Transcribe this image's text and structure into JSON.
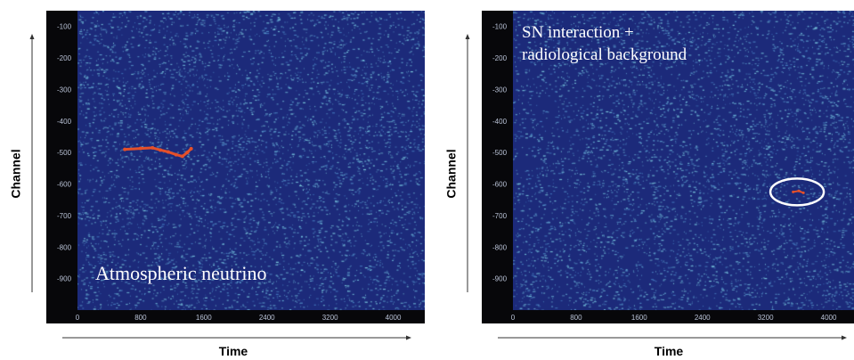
{
  "colors": {
    "background_field": "#1c2a7a",
    "noise_low": "#3d6fb8",
    "noise_high": "#7fd0e0",
    "event": "#e4502a",
    "marker": "#ffffff",
    "frame": "#07070a"
  },
  "chart_data": [
    {
      "type": "heatmap",
      "xlabel": "Time",
      "ylabel": "Channel",
      "x_ticks": [
        "0",
        "800",
        "1600",
        "2400",
        "3200",
        "4000"
      ],
      "y_ticks": [
        "-100",
        "-200",
        "-300",
        "-400",
        "-500",
        "-600",
        "-700",
        "-800",
        "-900"
      ],
      "xlim": [
        0,
        4400
      ],
      "ylim": [
        -1000,
        -50
      ],
      "annotation": "Atmospheric neutrino",
      "event_track": [
        {
          "x": 600,
          "y": -490
        },
        {
          "x": 800,
          "y": -487
        },
        {
          "x": 950,
          "y": -485
        },
        {
          "x": 1050,
          "y": -492
        },
        {
          "x": 1150,
          "y": -498
        },
        {
          "x": 1250,
          "y": -507
        },
        {
          "x": 1330,
          "y": -512
        },
        {
          "x": 1390,
          "y": -500
        },
        {
          "x": 1440,
          "y": -488
        }
      ]
    },
    {
      "type": "heatmap",
      "xlabel": "Time",
      "ylabel": "Channel",
      "x_ticks": [
        "0",
        "800",
        "1600",
        "2400",
        "3200",
        "4000"
      ],
      "y_ticks": [
        "-100",
        "-200",
        "-300",
        "-400",
        "-500",
        "-600",
        "-700",
        "-800",
        "-900"
      ],
      "xlim": [
        0,
        4400
      ],
      "ylim": [
        -1000,
        -50
      ],
      "annotation_lines": [
        "SN interaction +",
        "radiological background"
      ],
      "event_track": [
        {
          "x": 3550,
          "y": -625
        },
        {
          "x": 3620,
          "y": -622
        },
        {
          "x": 3680,
          "y": -628
        }
      ],
      "highlight": {
        "x": 3600,
        "y": -625
      }
    }
  ]
}
